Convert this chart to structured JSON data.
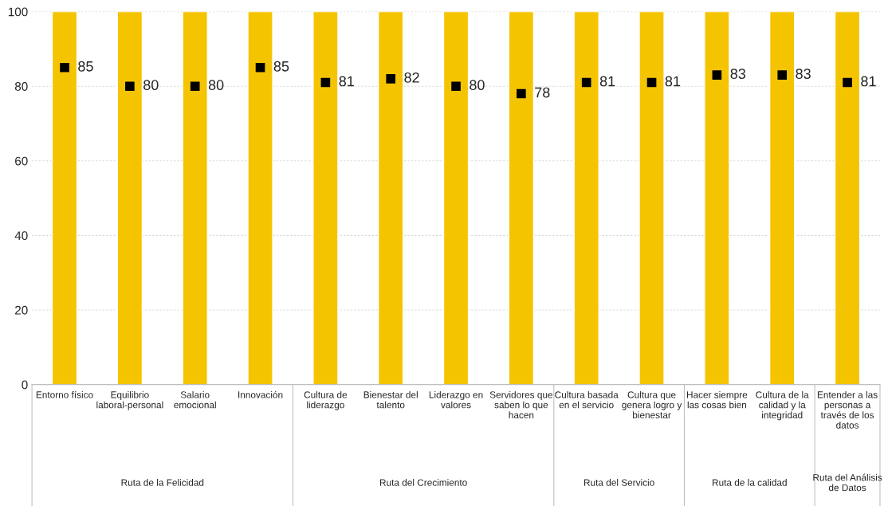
{
  "chart_data": {
    "type": "bar",
    "categories": [
      "Entorno físico",
      "Equilibrio\nlaboral-personal",
      "Salario\nemocional",
      "Innovación",
      "Cultura de\nliderazgo",
      "Bienestar del\ntalento",
      "Liderazgo en\nvalores",
      "Servidores que\nsaben lo que\nhacen",
      "Cultura basada\nen el servicio",
      "Cultura que\ngenera logro y\nbienestar",
      "Hacer siempre\nlas cosas bien",
      "Cultura de la\ncalidad y la\nintegridad",
      "Entender a las\npersonas a\ntravés de los\ndatos"
    ],
    "series": [
      {
        "color": "#f5c400",
        "values": [
          100,
          100,
          100,
          100,
          100,
          100,
          100,
          100,
          100,
          100,
          100,
          100,
          100
        ]
      },
      {
        "type": "scatter",
        "color": "#000000",
        "values": [
          85,
          80,
          80,
          85,
          81,
          82,
          80,
          78,
          81,
          81,
          83,
          83,
          81
        ],
        "value_labels": [
          "85",
          "80",
          "80",
          "85",
          "81",
          "82",
          "80",
          "78",
          "81",
          "81",
          "83",
          "83",
          "81"
        ]
      }
    ],
    "annotations": [
      "Ruta de la Felicidad",
      "Ruta del Crecimiento",
      "Ruta del Servicio",
      "Ruta de la calidad",
      "Ruta del Análisis\nde Datos"
    ],
    "ylim": [
      0,
      100
    ],
    "yticks": [
      0,
      20,
      40,
      60,
      80,
      100
    ],
    "grid": "y",
    "marker": "square",
    "legend": false
  }
}
